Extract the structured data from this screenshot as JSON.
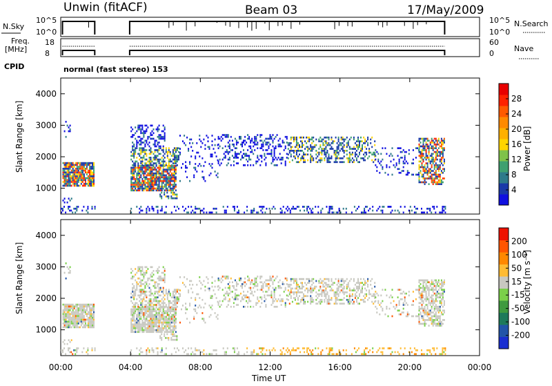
{
  "header": {
    "station": "Unwin (fitACF)",
    "beam": "Beam 03",
    "date": "17/May/2009",
    "cpid_label": "CPID",
    "cpid_text": "normal (fast stereo) 153"
  },
  "panels": {
    "nsky_label": "N.Sky",
    "nsky_ticks": [
      "10^5",
      "10^0"
    ],
    "nsearch_label": "N.Search",
    "nsearch_ticks": [
      "10^5",
      "10^0"
    ],
    "freq_label": "Freq.",
    "freq_unit": "[MHz]",
    "freq_ticks": [
      "18",
      "8"
    ],
    "nave_label": "Nave",
    "nave_ticks": [
      "60",
      "0"
    ]
  },
  "chart_data": [
    {
      "type": "heatmap",
      "name": "power",
      "xlabel": "",
      "ylabel": "Slant Range [km]",
      "xlim": [
        0,
        24
      ],
      "ylim": [
        180,
        4500
      ],
      "yticks": [
        "1000",
        "2000",
        "3000",
        "4000"
      ],
      "colorbar_label": "Power [dB]",
      "colorbar_ticks": [
        "4",
        "8",
        "12",
        "16",
        "20",
        "24",
        "28"
      ],
      "colorbar_colors": [
        "#1010e0",
        "#1a3aa8",
        "#2e7a8a",
        "#3fa070",
        "#7fc24a",
        "#ffd400",
        "#ffb000",
        "#ff8a00",
        "#ff5a00",
        "#ff2200",
        "#e80000"
      ],
      "data_gaps_hours": [
        [
          2.0,
          4.0
        ],
        [
          22.0,
          24.0
        ]
      ]
    },
    {
      "type": "heatmap",
      "name": "velocity",
      "xlabel": "Time UT",
      "ylabel": "Slant Range [km]",
      "xlim": [
        0,
        24
      ],
      "ylim": [
        180,
        4500
      ],
      "xticks": [
        "00:00",
        "04:00",
        "08:00",
        "12:00",
        "16:00",
        "20:00",
        "00:00"
      ],
      "yticks": [
        "1000",
        "2000",
        "3000",
        "4000"
      ],
      "colorbar_label": "Velocity [m s⁻¹]",
      "colorbar_ticks": [
        "200",
        "100",
        "50",
        "15",
        "-15",
        "-50",
        "-100",
        "-200"
      ],
      "colorbar_colors": [
        "#1a2fd0",
        "#2255a8",
        "#1e7a5a",
        "#3f9a3f",
        "#7bd04a",
        "#c8c8c0",
        "#ffbb33",
        "#ff8800",
        "#ff5500",
        "#ee1100"
      ],
      "data_gaps_hours": [
        [
          2.0,
          4.0
        ],
        [
          22.0,
          24.0
        ]
      ]
    }
  ],
  "colors": {
    "ground_scatter": "#c8c8c0"
  }
}
